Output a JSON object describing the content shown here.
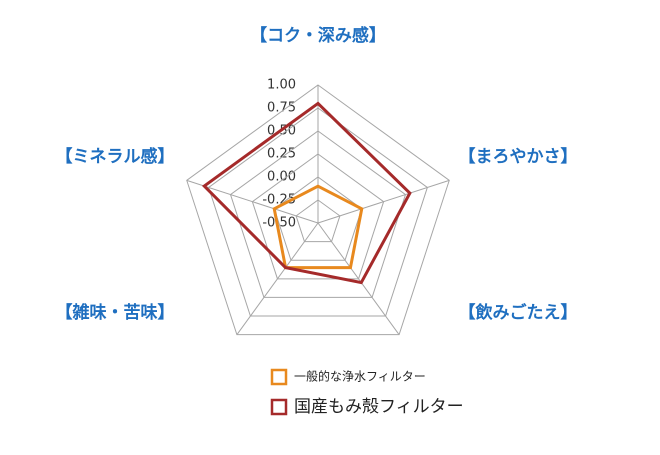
{
  "chart_data": {
    "type": "radar",
    "categories": [
      "【コク・深み感】",
      "【まろやかさ】",
      "【飲みごたえ】",
      "【雑味・苦味】",
      "【ミネラル感】"
    ],
    "series": [
      {
        "name": "一般的な浄水フィルター",
        "color": "#e8891e",
        "values": [
          -0.1,
          0,
          0.1,
          0.1,
          0
        ]
      },
      {
        "name": "国産もみ殻フィルター",
        "color": "#a52a2a",
        "values": [
          0.8,
          0.55,
          0.3,
          0.1,
          0.8
        ]
      }
    ],
    "ylim": [
      -0.5,
      1.0
    ],
    "yticks": [
      {
        "value": -0.5,
        "label": "-0.50"
      },
      {
        "value": -0.25,
        "label": "-0.25"
      },
      {
        "value": 0,
        "label": "0.00"
      },
      {
        "value": 0.25,
        "label": "0.25"
      },
      {
        "value": 0.5,
        "label": "0.50"
      },
      {
        "value": 0.75,
        "label": "0.75"
      },
      {
        "value": 1.0,
        "label": "1.00"
      }
    ],
    "grid": true
  }
}
